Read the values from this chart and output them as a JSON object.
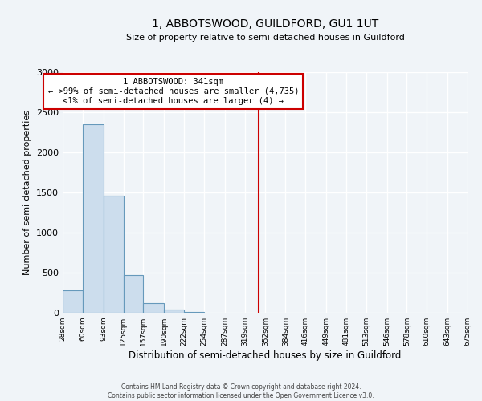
{
  "title": "1, ABBOTSWOOD, GUILDFORD, GU1 1UT",
  "subtitle": "Size of property relative to semi-detached houses in Guildford",
  "xlabel": "Distribution of semi-detached houses by size in Guildford",
  "ylabel": "Number of semi-detached properties",
  "bar_color": "#ccdded",
  "bar_edge_color": "#6699bb",
  "background_color": "#f0f4f8",
  "xlim_left": 28,
  "xlim_right": 675,
  "ylim": [
    0,
    3000
  ],
  "yticks": [
    0,
    500,
    1000,
    1500,
    2000,
    2500,
    3000
  ],
  "xtick_labels": [
    "28sqm",
    "60sqm",
    "93sqm",
    "125sqm",
    "157sqm",
    "190sqm",
    "222sqm",
    "254sqm",
    "287sqm",
    "319sqm",
    "352sqm",
    "384sqm",
    "416sqm",
    "449sqm",
    "481sqm",
    "513sqm",
    "546sqm",
    "578sqm",
    "610sqm",
    "643sqm",
    "675sqm"
  ],
  "bin_edges": [
    28,
    60,
    93,
    125,
    157,
    190,
    222,
    254,
    287,
    319,
    352,
    384,
    416,
    449,
    481,
    513,
    546,
    578,
    610,
    643,
    675
  ],
  "bar_heights": [
    280,
    2350,
    1460,
    475,
    120,
    45,
    15,
    0,
    0,
    0,
    0,
    0,
    0,
    0,
    0,
    0,
    0,
    0,
    0,
    0
  ],
  "vline_x": 341,
  "vline_color": "#cc0000",
  "annotation_title": "1 ABBOTSWOOD: 341sqm",
  "annotation_line1": "← >99% of semi-detached houses are smaller (4,735)",
  "annotation_line2": "<1% of semi-detached houses are larger (4) →",
  "annotation_box_color": "#ffffff",
  "annotation_box_edge_color": "#cc0000",
  "footer_line1": "Contains HM Land Registry data © Crown copyright and database right 2024.",
  "footer_line2": "Contains public sector information licensed under the Open Government Licence v3.0."
}
